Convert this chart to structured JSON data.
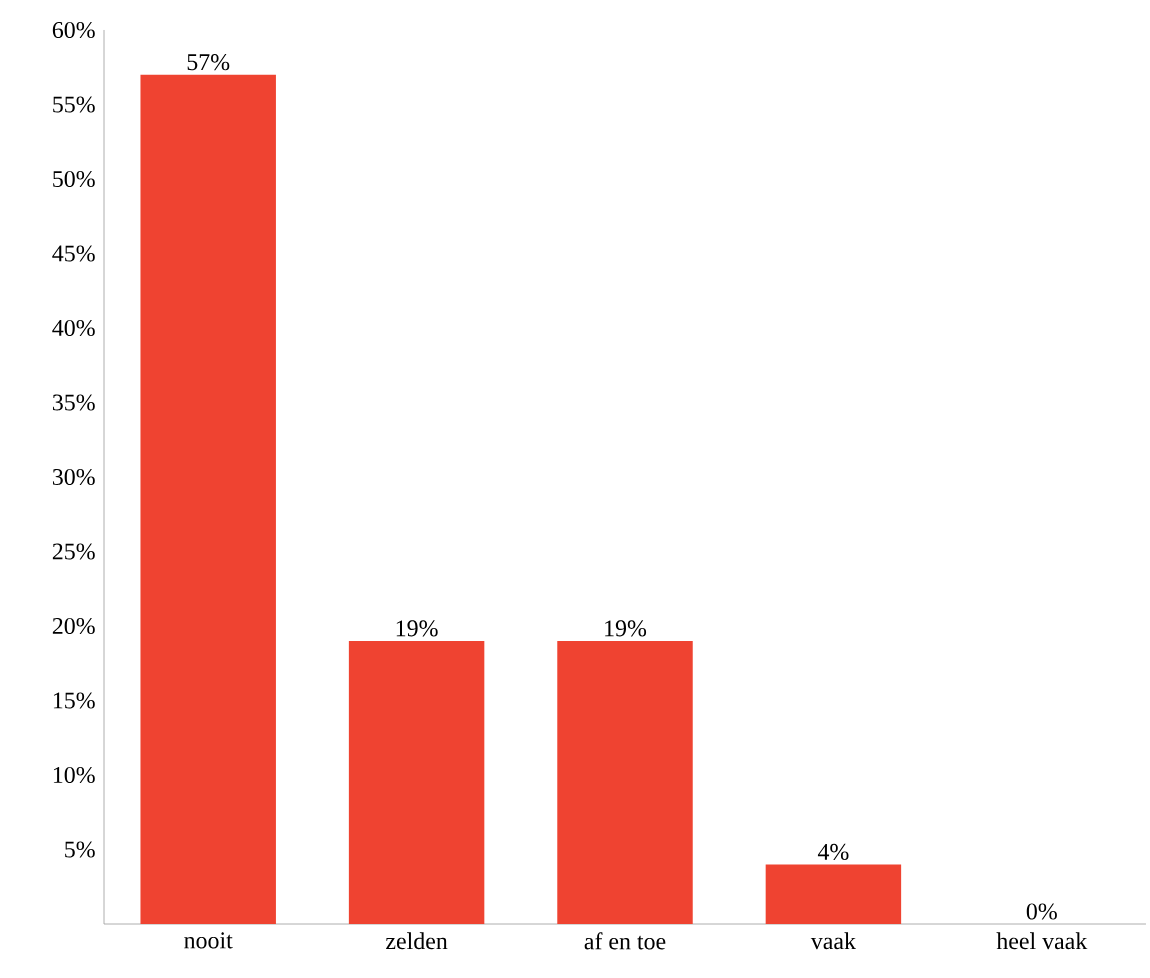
{
  "chart_data": {
    "type": "bar",
    "categories": [
      "nooit",
      "zelden",
      "af en toe",
      "vaak",
      "heel vaak"
    ],
    "values": [
      57,
      19,
      19,
      4,
      0
    ],
    "value_labels": [
      "57%",
      "19%",
      "19%",
      "4%",
      "0%"
    ],
    "color": "#ef4331",
    "ylim": [
      0,
      60
    ],
    "yticks": [
      {
        "value": 5,
        "label": "5%"
      },
      {
        "value": 10,
        "label": "10%"
      },
      {
        "value": 15,
        "label": "15%"
      },
      {
        "value": 20,
        "label": "20%"
      },
      {
        "value": 25,
        "label": "25%"
      },
      {
        "value": 30,
        "label": "30%"
      },
      {
        "value": 35,
        "label": "35%"
      },
      {
        "value": 40,
        "label": "40%"
      },
      {
        "value": 45,
        "label": "45%"
      },
      {
        "value": 50,
        "label": "50%"
      },
      {
        "value": 55,
        "label": "55%"
      },
      {
        "value": 60,
        "label": "60%"
      }
    ]
  }
}
